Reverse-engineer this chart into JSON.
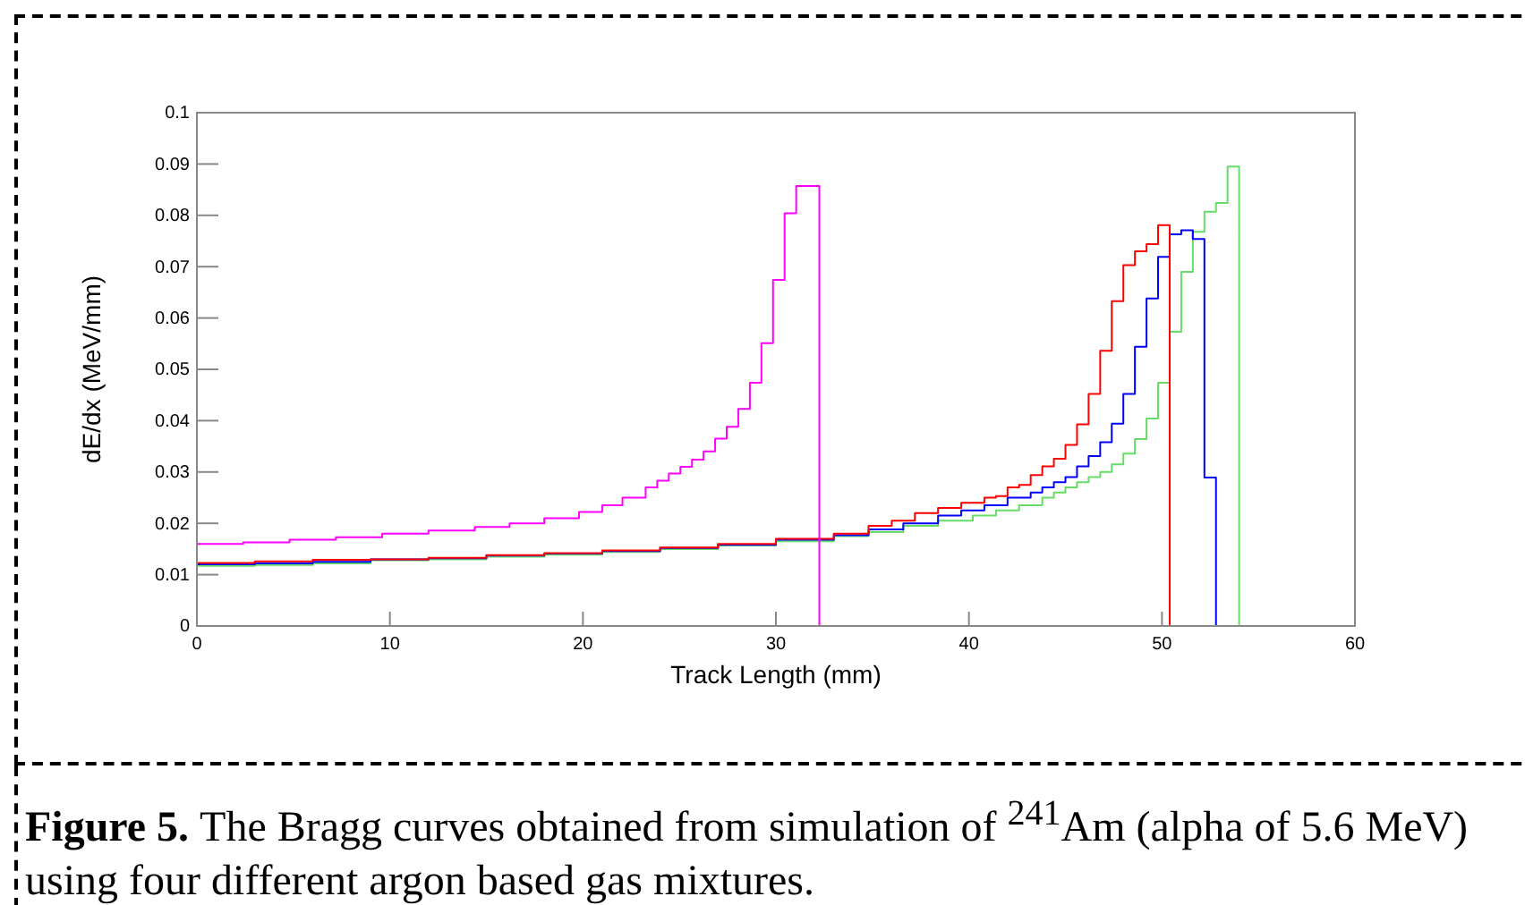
{
  "chart_data": {
    "type": "step",
    "xlabel": "Track Length (mm)",
    "ylabel": "dE/dx (MeV/mm)",
    "xlim": [
      0,
      60
    ],
    "xticks": [
      0,
      10,
      20,
      30,
      40,
      50,
      60
    ],
    "ylim": [
      0,
      0.1
    ],
    "yticks": [
      0,
      0.01,
      0.02,
      0.03,
      0.04,
      0.05,
      0.06,
      0.07,
      0.08,
      0.09,
      0.1
    ],
    "grid": false,
    "annotations": [
      "Figure 5.",
      "The Bragg curves obtained from simulation of $^{241}$Am (alpha of 5.6 MeV) using four different argon based gas mixtures."
    ],
    "series": [
      {
        "color": "#ff00ff",
        "x": [
          0,
          2.4,
          4.8,
          7.2,
          9.6,
          12,
          14.4,
          16.2,
          18,
          19.8,
          21,
          22.05,
          23.25,
          23.85,
          24.45,
          25.05,
          25.65,
          26.25,
          26.85,
          27.45,
          28.05,
          28.65,
          29.25,
          29.85,
          30.45,
          31.05,
          32.25,
          60
        ],
        "values": [
          0.016,
          0.0163,
          0.0168,
          0.0173,
          0.018,
          0.0186,
          0.0193,
          0.02,
          0.021,
          0.0222,
          0.0235,
          0.025,
          0.027,
          0.0283,
          0.0297,
          0.031,
          0.0324,
          0.034,
          0.0365,
          0.0388,
          0.0423,
          0.0474,
          0.0551,
          0.0674,
          0.0804,
          0.0857,
          0,
          0
        ]
      },
      {
        "color": "#ff0000",
        "x": [
          0,
          3,
          6,
          9,
          12,
          15,
          18,
          21,
          24,
          27,
          30,
          33,
          34.8,
          36,
          37.2,
          38.4,
          39.6,
          40.8,
          41.4,
          42,
          42.6,
          43.2,
          43.8,
          44.4,
          45,
          45.6,
          46.2,
          46.8,
          47.4,
          48,
          48.6,
          49.2,
          49.8,
          50.4,
          60
        ],
        "values": [
          0.0123,
          0.0126,
          0.0129,
          0.013,
          0.0133,
          0.0138,
          0.0142,
          0.0147,
          0.0153,
          0.016,
          0.017,
          0.018,
          0.0195,
          0.0205,
          0.022,
          0.023,
          0.024,
          0.025,
          0.0253,
          0.027,
          0.0275,
          0.0294,
          0.0311,
          0.0326,
          0.0353,
          0.0393,
          0.0452,
          0.0536,
          0.0633,
          0.0703,
          0.073,
          0.0744,
          0.0781,
          0,
          0
        ]
      },
      {
        "color": "#0000ff",
        "x": [
          0,
          3,
          6,
          9,
          12,
          15,
          18,
          21,
          24,
          27,
          30,
          33,
          34.8,
          36.6,
          38.4,
          39.6,
          40.8,
          42,
          43.2,
          43.8,
          44.4,
          45,
          45.6,
          46.2,
          46.8,
          47.4,
          48,
          48.6,
          49.2,
          49.8,
          50.4,
          51,
          51.6,
          52.2,
          52.8,
          60
        ],
        "values": [
          0.012,
          0.0122,
          0.0125,
          0.013,
          0.0132,
          0.0137,
          0.0141,
          0.0146,
          0.0152,
          0.0158,
          0.0168,
          0.0177,
          0.0188,
          0.02,
          0.0215,
          0.0225,
          0.0235,
          0.025,
          0.026,
          0.027,
          0.028,
          0.029,
          0.0311,
          0.0331,
          0.0358,
          0.0394,
          0.0452,
          0.0544,
          0.0638,
          0.0719,
          0.0763,
          0.0771,
          0.0754,
          0.0289,
          0,
          0
        ]
      },
      {
        "color": "#66dd66",
        "x": [
          0,
          3,
          6,
          9,
          12,
          15,
          18,
          21,
          24,
          27,
          30,
          33,
          34.8,
          36.6,
          38.4,
          40.2,
          41.4,
          42.6,
          43.8,
          44.4,
          45,
          45.6,
          46.2,
          46.8,
          47.4,
          48,
          48.6,
          49.2,
          49.8,
          50.4,
          51,
          51.6,
          52.2,
          52.8,
          53.4,
          54,
          60
        ],
        "values": [
          0.0117,
          0.0119,
          0.0122,
          0.0128,
          0.013,
          0.0135,
          0.0139,
          0.0144,
          0.015,
          0.0157,
          0.0165,
          0.0175,
          0.0183,
          0.0195,
          0.0205,
          0.0215,
          0.0225,
          0.0235,
          0.025,
          0.026,
          0.027,
          0.028,
          0.029,
          0.03,
          0.0315,
          0.0336,
          0.0364,
          0.0404,
          0.0474,
          0.0573,
          0.069,
          0.0768,
          0.0807,
          0.0824,
          0.0895,
          0,
          0
        ]
      }
    ]
  }
}
